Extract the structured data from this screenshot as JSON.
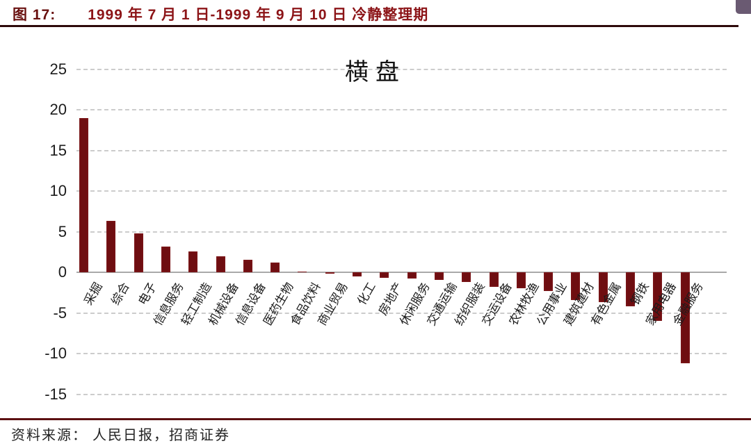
{
  "header": {
    "figure_label": "图 17:",
    "title": "1999 年 7 月 1 日-1999 年 9 月 10 日  冷静整理期"
  },
  "footer": {
    "source": "资料来源： 人民日报，招商证券"
  },
  "colors": {
    "bar": "#6e0e11",
    "header_text": "#8c1417",
    "divider": "#5c1012",
    "corner_square": "#6a5a72"
  },
  "chart_data": {
    "type": "bar",
    "title": "横盘",
    "xlabel": "",
    "ylabel": "",
    "ylim": [
      -15,
      25
    ],
    "ytick_interval": 5,
    "grid": "horizontal-dashed",
    "legend": "none",
    "categories": [
      "采掘",
      "综合",
      "电子",
      "信息服务",
      "轻工制造",
      "机械设备",
      "信息设备",
      "医药生物",
      "食品饮料",
      "商业贸易",
      "化工",
      "房地产",
      "休闲服务",
      "交通运输",
      "纺织服装",
      "交运设备",
      "农林牧渔",
      "公用事业",
      "建筑建材",
      "有色金属",
      "钢铁",
      "家用电器",
      "金融服务"
    ],
    "values": [
      19.0,
      6.3,
      4.8,
      3.2,
      2.6,
      2.0,
      1.5,
      1.2,
      0.1,
      -0.1,
      -0.5,
      -0.7,
      -0.8,
      -0.9,
      -1.2,
      -1.8,
      -2.0,
      -2.3,
      -3.4,
      -3.7,
      -4.2,
      -6.0,
      -11.2
    ]
  }
}
